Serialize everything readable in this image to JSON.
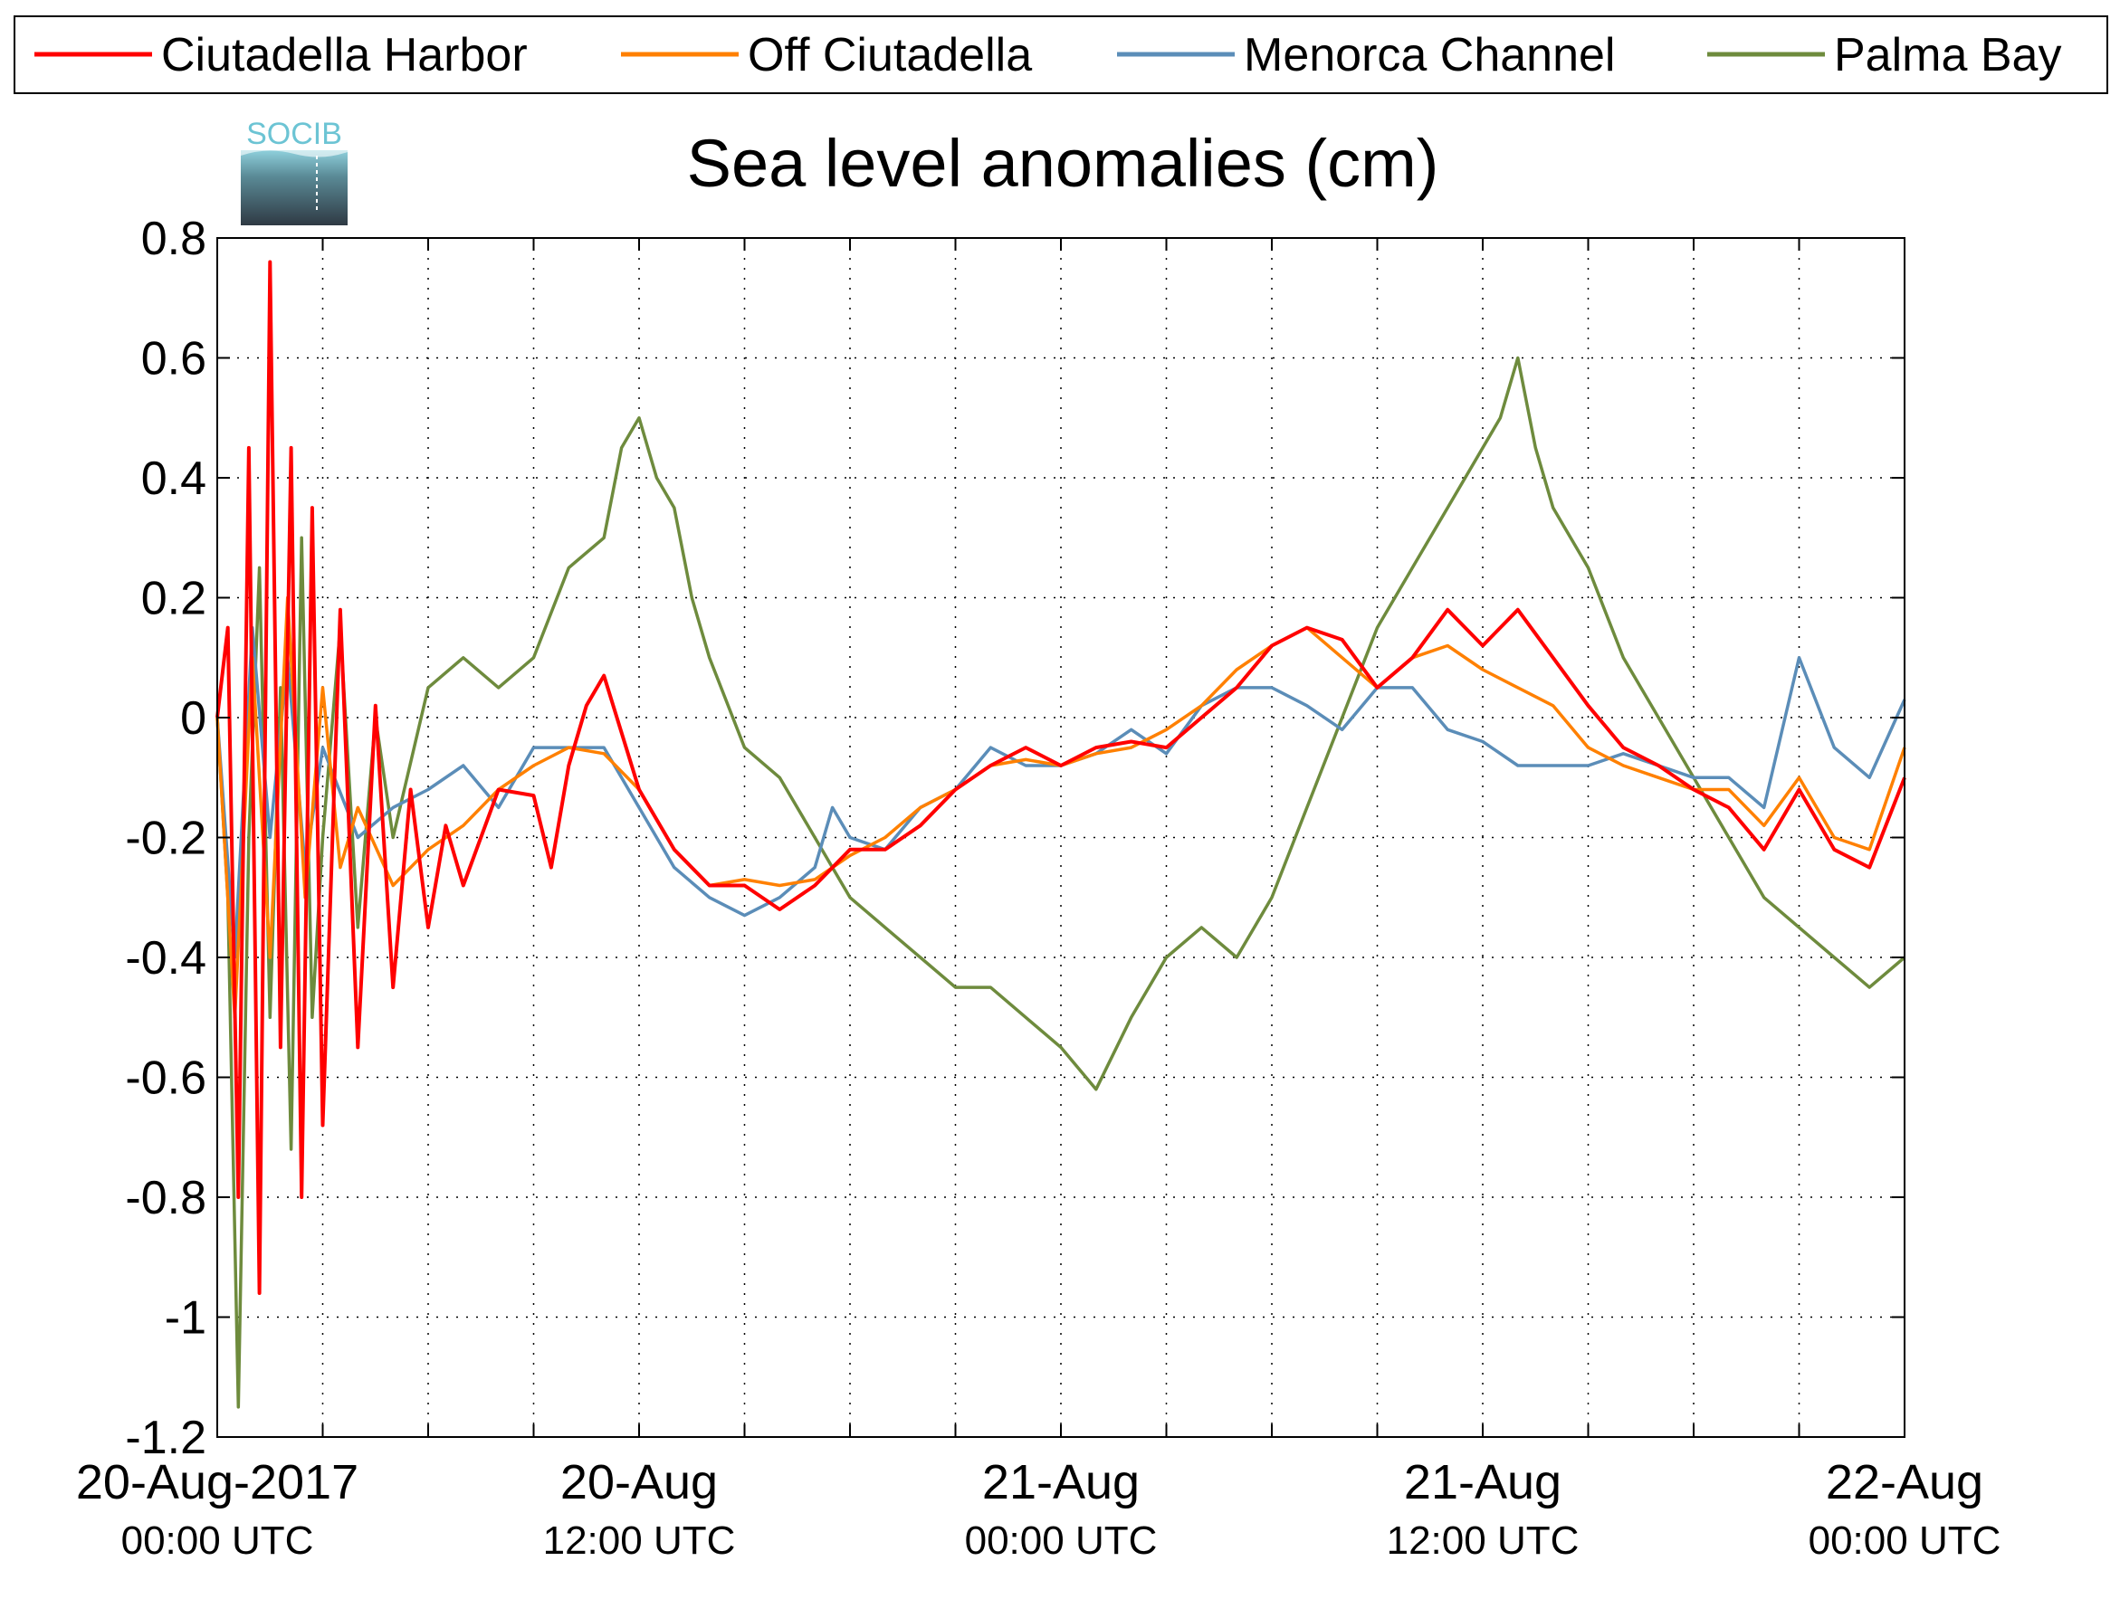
{
  "chart_data": {
    "type": "line",
    "title": "Sea level anomalies (cm)",
    "xlabel": "",
    "ylabel": "",
    "logo_text": "SOCIB",
    "x_unit": "hours since 20-Aug-2017 00:00 UTC",
    "xlim": [
      0,
      48
    ],
    "ylim": [
      -1.2,
      0.8
    ],
    "grid": true,
    "legend_position": "top",
    "y_ticks": [
      0.8,
      0.6,
      0.4,
      0.2,
      0,
      -0.2,
      -0.4,
      -0.6,
      -0.8,
      -1,
      -1.2
    ],
    "y_tick_labels": [
      "0.8",
      "0.6",
      "0.4",
      "0.2",
      "0",
      "-0.2",
      "-0.4",
      "-0.6",
      "-0.8",
      "-1",
      "-1.2"
    ],
    "x_ticks": [
      0,
      3,
      6,
      9,
      12,
      15,
      18,
      21,
      24,
      27,
      30,
      33,
      36,
      39,
      42,
      45,
      48
    ],
    "x_tick_labels": [
      {
        "x": 0,
        "line1": "20-Aug-2017",
        "line2": "00:00 UTC"
      },
      {
        "x": 12,
        "line1": "20-Aug",
        "line2": "12:00 UTC"
      },
      {
        "x": 24,
        "line1": "21-Aug",
        "line2": "00:00 UTC"
      },
      {
        "x": 36,
        "line1": "21-Aug",
        "line2": "12:00 UTC"
      },
      {
        "x": 48,
        "line1": "22-Aug",
        "line2": "00:00 UTC"
      }
    ],
    "series": [
      {
        "name": "Ciutadella Harbor",
        "color": "#ff0000",
        "x": [
          0,
          0.3,
          0.6,
          0.9,
          1.2,
          1.5,
          1.8,
          2.1,
          2.4,
          2.7,
          3,
          3.5,
          4,
          4.5,
          5,
          5.5,
          6,
          6.5,
          7,
          8,
          9,
          9.5,
          10,
          10.5,
          11,
          12,
          13,
          14,
          15,
          16,
          17,
          18,
          19,
          20,
          21,
          22,
          23,
          24,
          25,
          26,
          27,
          28,
          29,
          30,
          31,
          32,
          33,
          34,
          35,
          36,
          37,
          38,
          39,
          40,
          41,
          42,
          43,
          44,
          45,
          46,
          47,
          48
        ],
        "y": [
          0.0,
          0.15,
          -0.8,
          0.45,
          -0.96,
          0.76,
          -0.55,
          0.45,
          -0.8,
          0.35,
          -0.68,
          0.18,
          -0.55,
          0.02,
          -0.45,
          -0.12,
          -0.35,
          -0.18,
          -0.28,
          -0.12,
          -0.13,
          -0.25,
          -0.08,
          0.02,
          0.07,
          -0.12,
          -0.22,
          -0.28,
          -0.28,
          -0.32,
          -0.28,
          -0.22,
          -0.22,
          -0.18,
          -0.12,
          -0.08,
          -0.05,
          -0.08,
          -0.05,
          -0.04,
          -0.05,
          0.0,
          0.05,
          0.12,
          0.15,
          0.13,
          0.05,
          0.1,
          0.18,
          0.12,
          0.18,
          0.1,
          0.02,
          -0.05,
          -0.08,
          -0.12,
          -0.15,
          -0.22,
          -0.12,
          -0.22,
          -0.25,
          -0.1
        ]
      },
      {
        "name": "Off Ciutadella",
        "color": "#ff8000",
        "x": [
          0,
          0.5,
          1,
          1.5,
          2,
          2.5,
          3,
          3.5,
          4,
          5,
          6,
          7,
          8,
          9,
          10,
          11,
          12,
          13,
          14,
          15,
          16,
          17,
          18,
          19,
          20,
          21,
          22,
          23,
          24,
          25,
          26,
          27,
          28,
          29,
          30,
          31,
          32,
          33,
          34,
          35,
          36,
          37,
          38,
          39,
          40,
          41,
          42,
          43,
          44,
          45,
          46,
          47,
          48
        ],
        "y": [
          0.0,
          -0.5,
          0.1,
          -0.4,
          0.2,
          -0.3,
          0.05,
          -0.25,
          -0.15,
          -0.28,
          -0.22,
          -0.18,
          -0.12,
          -0.08,
          -0.05,
          -0.06,
          -0.12,
          -0.22,
          -0.28,
          -0.27,
          -0.28,
          -0.27,
          -0.23,
          -0.2,
          -0.15,
          -0.12,
          -0.08,
          -0.07,
          -0.08,
          -0.06,
          -0.05,
          -0.02,
          0.02,
          0.08,
          0.12,
          0.15,
          0.1,
          0.05,
          0.1,
          0.12,
          0.08,
          0.05,
          0.02,
          -0.05,
          -0.08,
          -0.1,
          -0.12,
          -0.12,
          -0.18,
          -0.1,
          -0.2,
          -0.22,
          -0.05
        ]
      },
      {
        "name": "Menorca Channel",
        "color": "#5b8db8",
        "x": [
          0,
          0.5,
          1,
          1.5,
          2,
          2.5,
          3,
          4,
          5,
          6,
          7,
          8,
          9,
          10,
          11,
          12,
          13,
          14,
          15,
          16,
          17,
          17.5,
          18,
          19,
          20,
          21,
          22,
          23,
          24,
          25,
          26,
          27,
          28,
          29,
          30,
          31,
          32,
          33,
          34,
          35,
          36,
          37,
          38,
          39,
          40,
          41,
          42,
          43,
          44,
          45,
          46,
          47,
          48
        ],
        "y": [
          0.0,
          -0.4,
          0.15,
          -0.2,
          0.1,
          -0.25,
          -0.05,
          -0.2,
          -0.15,
          -0.12,
          -0.08,
          -0.15,
          -0.05,
          -0.05,
          -0.05,
          -0.15,
          -0.25,
          -0.3,
          -0.33,
          -0.3,
          -0.25,
          -0.15,
          -0.2,
          -0.22,
          -0.15,
          -0.12,
          -0.05,
          -0.08,
          -0.08,
          -0.06,
          -0.02,
          -0.06,
          0.02,
          0.05,
          0.05,
          0.02,
          -0.02,
          0.05,
          0.05,
          -0.02,
          -0.04,
          -0.08,
          -0.08,
          -0.08,
          -0.06,
          -0.08,
          -0.1,
          -0.1,
          -0.15,
          0.1,
          -0.05,
          -0.1,
          0.03
        ]
      },
      {
        "name": "Palma Bay",
        "color": "#6e8b3d",
        "x": [
          0,
          0.3,
          0.6,
          0.9,
          1.2,
          1.5,
          1.8,
          2.1,
          2.4,
          2.7,
          3,
          3.5,
          4,
          4.5,
          5,
          6,
          7,
          8,
          9,
          10,
          11,
          11.5,
          12,
          12.5,
          13,
          13.5,
          14,
          15,
          16,
          17,
          18,
          19,
          20,
          21,
          22,
          23,
          24,
          25,
          26,
          27,
          28,
          29,
          30,
          31,
          32,
          33,
          34,
          35,
          36,
          36.5,
          37,
          37.5,
          38,
          39,
          40,
          41,
          42,
          43,
          44,
          45,
          46,
          47,
          48
        ],
        "y": [
          0.0,
          -0.3,
          -1.15,
          -0.2,
          0.25,
          -0.5,
          0.05,
          -0.72,
          0.3,
          -0.5,
          -0.2,
          0.15,
          -0.35,
          0.0,
          -0.2,
          0.05,
          0.1,
          0.05,
          0.1,
          0.25,
          0.3,
          0.45,
          0.5,
          0.4,
          0.35,
          0.2,
          0.1,
          -0.05,
          -0.1,
          -0.2,
          -0.3,
          -0.35,
          -0.4,
          -0.45,
          -0.45,
          -0.5,
          -0.55,
          -0.62,
          -0.5,
          -0.4,
          -0.35,
          -0.4,
          -0.3,
          -0.15,
          0.0,
          0.15,
          0.25,
          0.35,
          0.45,
          0.5,
          0.6,
          0.45,
          0.35,
          0.25,
          0.1,
          0.0,
          -0.1,
          -0.2,
          -0.3,
          -0.35,
          -0.4,
          -0.45,
          -0.4
        ]
      }
    ]
  }
}
